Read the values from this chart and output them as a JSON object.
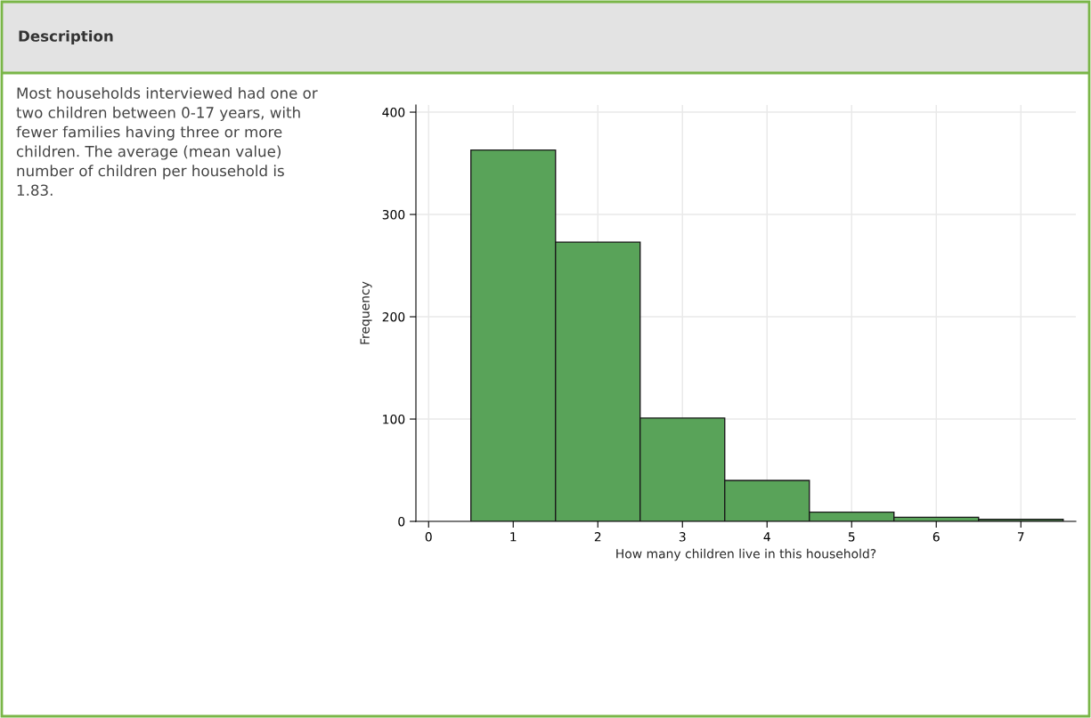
{
  "chart_data": {
    "type": "histogram",
    "title": "Description",
    "annotations": [
      "Most households interviewed had one or two children between 0-17 years, with fewer families having three or more children. The average (mean value) number of children per household is 1.83."
    ],
    "xlabel": "How many children live in this household?",
    "ylabel": "Frequency",
    "bins": [
      0.5,
      1.5,
      2.5,
      3.5,
      4.5,
      5.5,
      6.5,
      7.5
    ],
    "values": [
      363,
      273,
      101,
      40,
      9,
      4,
      2
    ],
    "color": "#59a359",
    "xlim": [
      -0.15,
      7.65
    ],
    "xticks": [
      0,
      1,
      2,
      3,
      4,
      5,
      6,
      7
    ],
    "ylim": [
      0,
      407
    ],
    "yticks": [
      0,
      100,
      200,
      300,
      400
    ],
    "grid": true
  }
}
